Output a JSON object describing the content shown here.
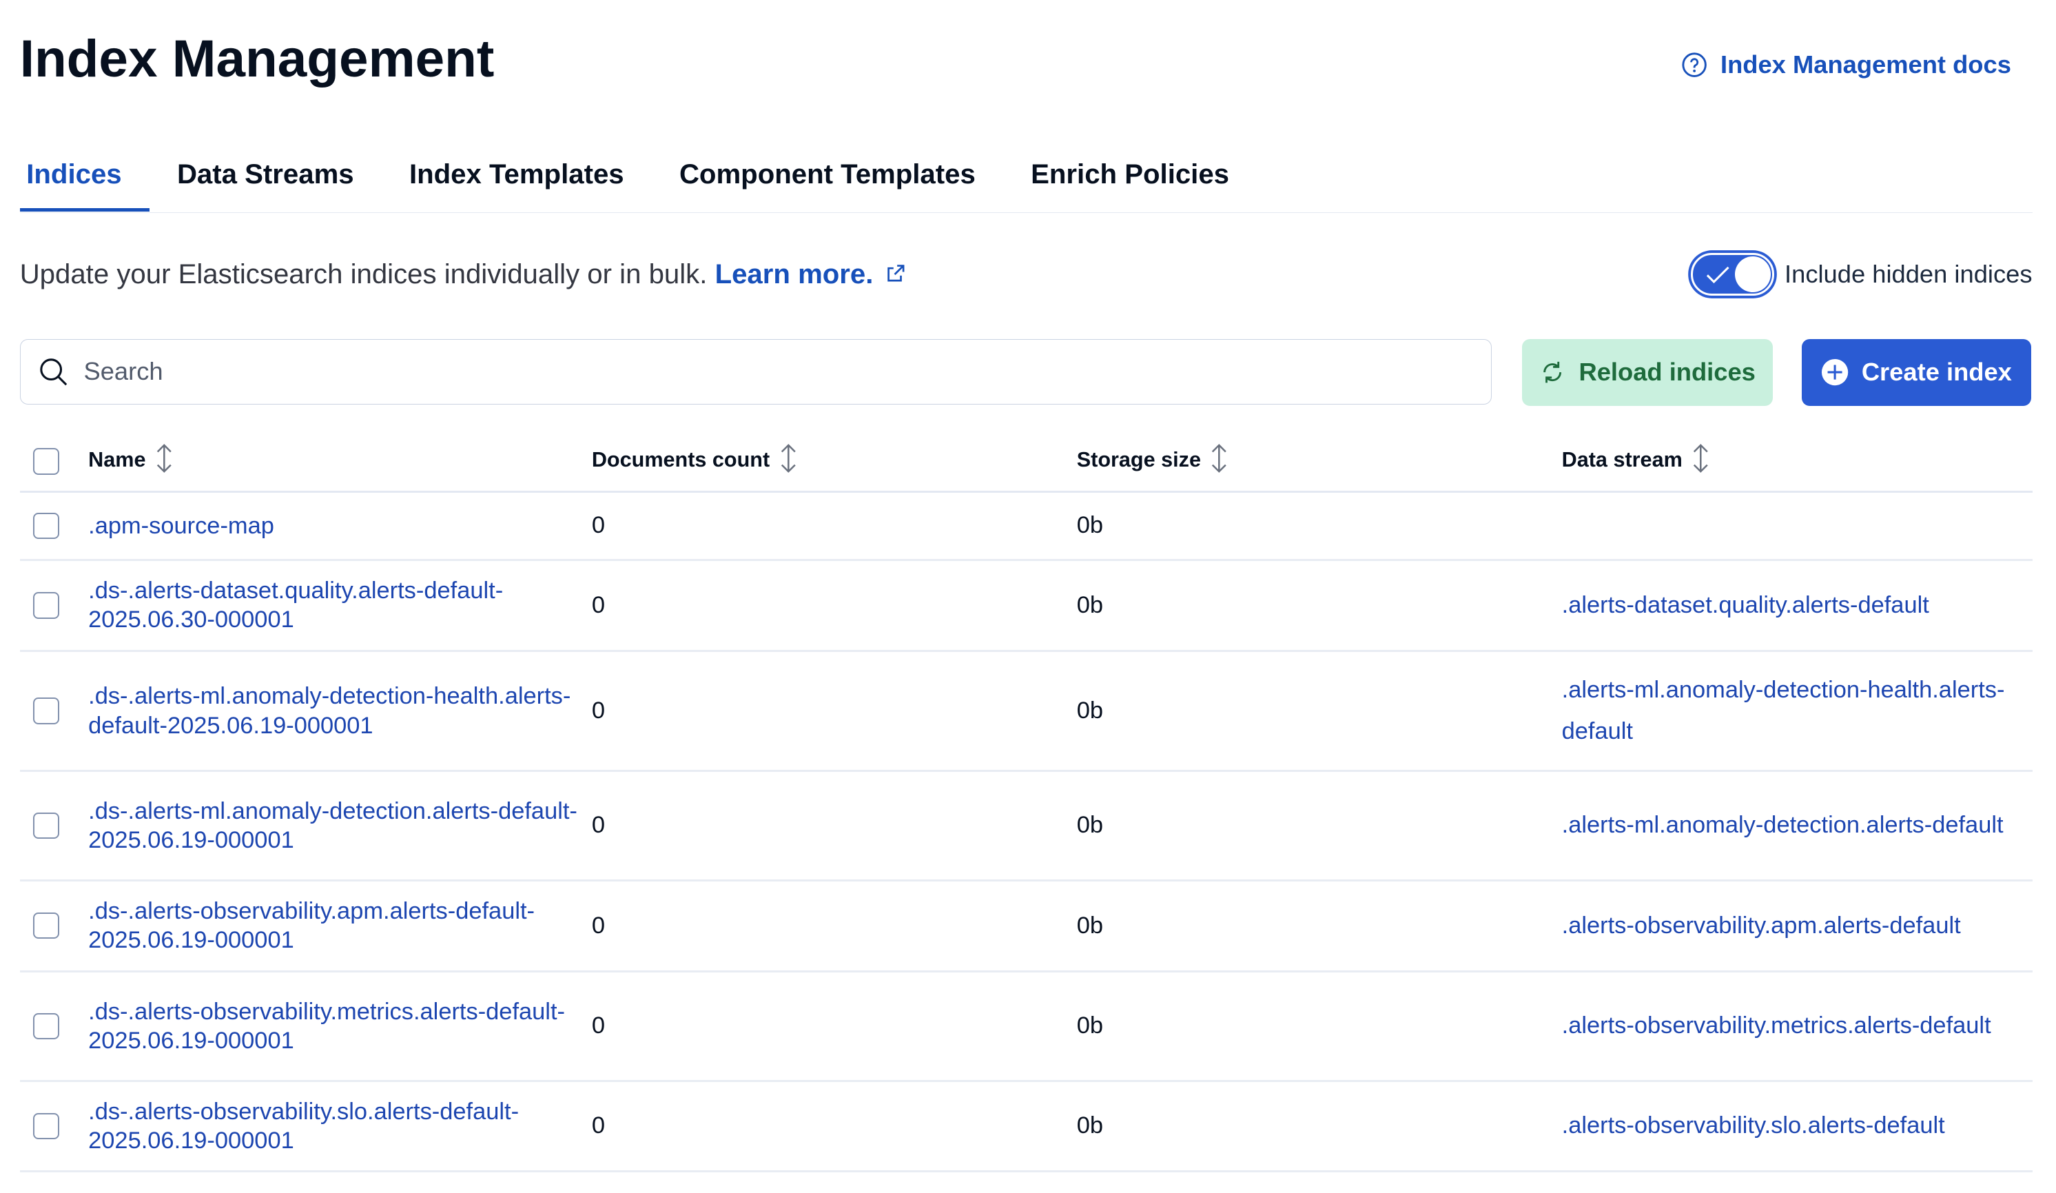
{
  "header": {
    "title": "Index Management",
    "docs_link": "Index Management docs",
    "docs_icon": "question-circle-icon"
  },
  "tabs": [
    {
      "label": "Indices",
      "active": true
    },
    {
      "label": "Data Streams"
    },
    {
      "label": "Index Templates"
    },
    {
      "label": "Component Templates"
    },
    {
      "label": "Enrich Policies"
    }
  ],
  "description": {
    "text": "Update your Elasticsearch indices individually or in bulk. ",
    "link": "Learn more."
  },
  "toggle": {
    "label": "Include hidden indices",
    "checked": true
  },
  "search": {
    "placeholder": "Search",
    "value": ""
  },
  "buttons": {
    "reload": "Reload indices",
    "create": "Create index"
  },
  "colors": {
    "primary": "#2a5bd3",
    "link": "#1750ba",
    "reload_bg": "#c9f0de",
    "reload_text": "#1e6b3c"
  },
  "table": {
    "columns": [
      "Name",
      "Documents count",
      "Storage size",
      "Data stream"
    ],
    "rows": [
      {
        "name": ".apm-source-map",
        "docs": "0",
        "size": "0b",
        "stream": ""
      },
      {
        "name": ".ds-.alerts-dataset.quality.alerts-default-2025.06.30-000001",
        "docs": "0",
        "size": "0b",
        "stream": ".alerts-dataset.quality.alerts-default"
      },
      {
        "name": ".ds-.alerts-ml.anomaly-detection-health.alerts-default-2025.06.19-000001",
        "docs": "0",
        "size": "0b",
        "stream": ".alerts-ml.anomaly-detection-health.alerts-default"
      },
      {
        "name": ".ds-.alerts-ml.anomaly-detection.alerts-default-2025.06.19-000001",
        "docs": "0",
        "size": "0b",
        "stream": ".alerts-ml.anomaly-detection.alerts-default"
      },
      {
        "name": ".ds-.alerts-observability.apm.alerts-default-2025.06.19-000001",
        "docs": "0",
        "size": "0b",
        "stream": ".alerts-observability.apm.alerts-default"
      },
      {
        "name": ".ds-.alerts-observability.metrics.alerts-default-2025.06.19-000001",
        "docs": "0",
        "size": "0b",
        "stream": ".alerts-observability.metrics.alerts-default"
      },
      {
        "name": ".ds-.alerts-observability.slo.alerts-default-2025.06.19-000001",
        "docs": "0",
        "size": "0b",
        "stream": ".alerts-observability.slo.alerts-default"
      }
    ]
  }
}
